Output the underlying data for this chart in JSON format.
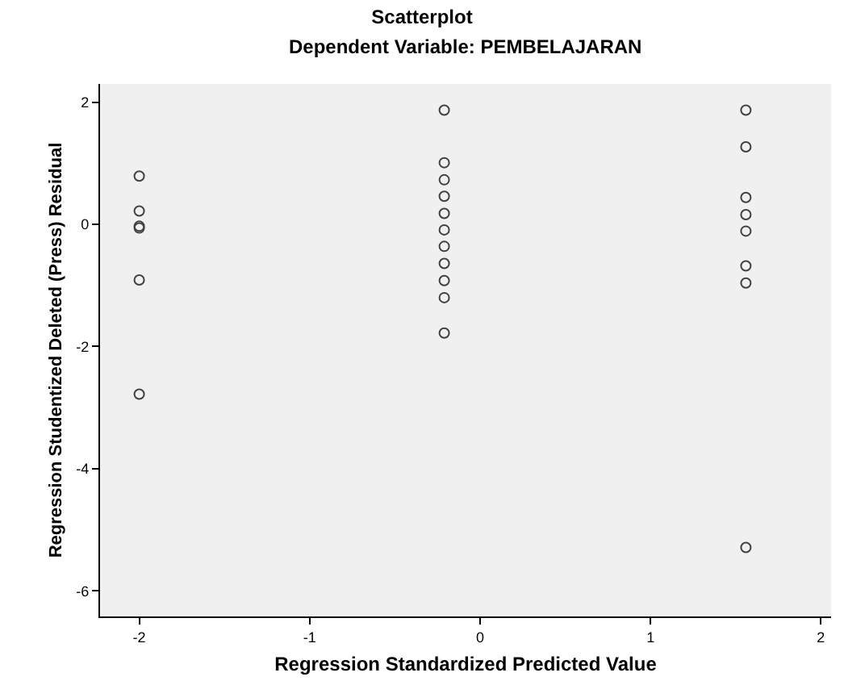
{
  "chart_data": {
    "type": "scatter",
    "title": "Scatterplot",
    "subtitle": "Dependent Variable: PEMBELAJARAN",
    "xlabel": "Regression Standardized Predicted Value",
    "ylabel": "Regression Studentized Deleted (Press) Residual",
    "x": [
      -2,
      -2,
      -2,
      -2,
      -2,
      -2,
      -0.21,
      -0.21,
      -0.21,
      -0.21,
      -0.21,
      -0.21,
      -0.21,
      -0.21,
      -0.21,
      -0.21,
      -0.21,
      1.56,
      1.56,
      1.56,
      1.56,
      1.56,
      1.56,
      1.56,
      1.56
    ],
    "values": [
      0.79,
      0.22,
      -0.03,
      -0.06,
      -0.91,
      -2.78,
      1.87,
      1.01,
      0.73,
      0.46,
      0.18,
      -0.09,
      -0.36,
      -0.64,
      -0.92,
      -1.2,
      -1.78,
      1.87,
      1.27,
      0.44,
      0.16,
      -0.11,
      -0.68,
      -0.96,
      -5.29
    ],
    "color": "#404040",
    "marker": "circle",
    "xlim": [
      -2.23,
      2.06
    ],
    "ylim": [
      -6.42,
      2.3
    ],
    "xticks": [
      -2,
      -1,
      0,
      1,
      2
    ],
    "yticks": [
      -6,
      -4,
      -2,
      0,
      2
    ],
    "grid": false
  }
}
